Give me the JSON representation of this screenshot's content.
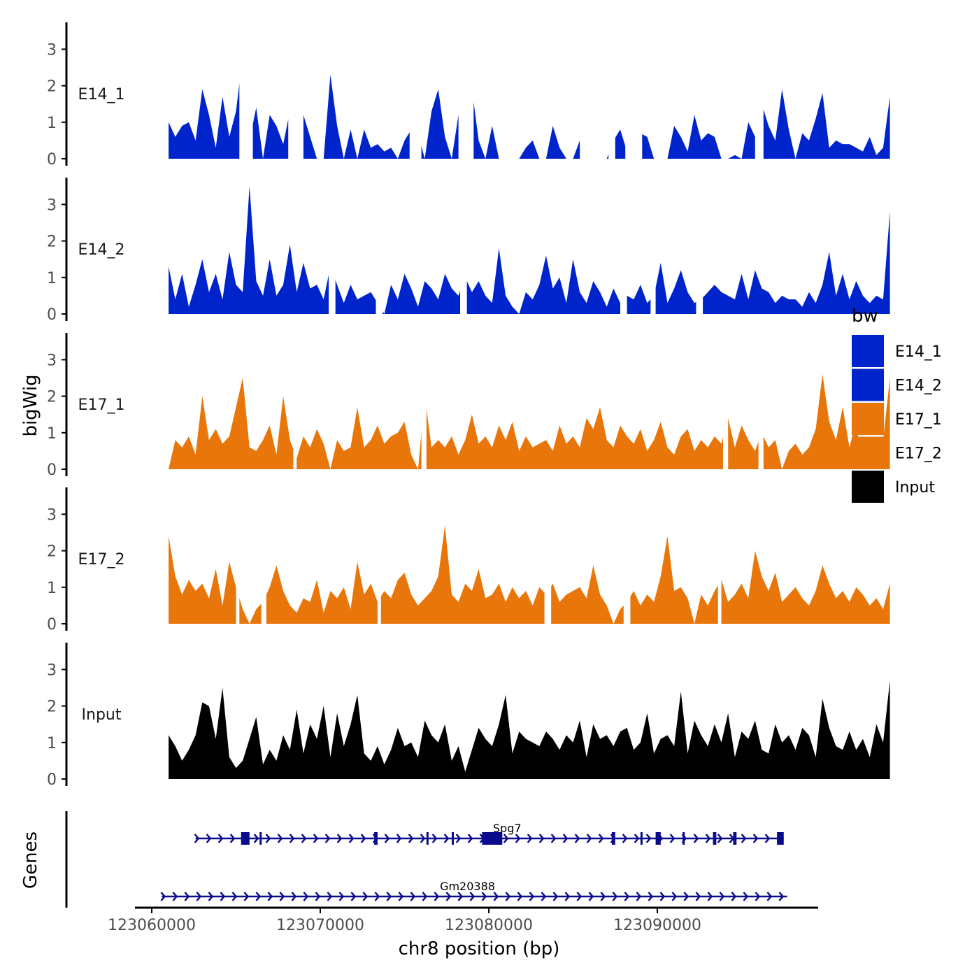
{
  "chart_data": {
    "type": "area",
    "title": "",
    "ylabel": "bigWig",
    "xlabel": "chr8 position (bp)",
    "region": {
      "chrom": "chr8",
      "start": 123061000,
      "end": 123097700
    },
    "xlim": [
      123058500,
      123098500
    ],
    "x_ticks": [
      123060000,
      123070000,
      123080000,
      123090000
    ],
    "x_tick_labels": [
      "123060000",
      "123070000",
      "123080000",
      "123090000"
    ],
    "ylim": [
      0,
      3.8
    ],
    "y_ticks": [
      0,
      1,
      2,
      3
    ],
    "y_tick_labels": [
      "0",
      "1",
      "2",
      "3"
    ],
    "bin_size_bp": 400,
    "legend": {
      "title": "bw",
      "position": "right",
      "entries": [
        {
          "label": "E14_1",
          "color": "#0024CC"
        },
        {
          "label": "E14_2",
          "color": "#0024CC"
        },
        {
          "label": "E17_1",
          "color": "#E8760A"
        },
        {
          "label": "E17_2",
          "color": "#E8760A"
        },
        {
          "label": "Input",
          "color": "#000000"
        }
      ]
    },
    "series": [
      {
        "name": "E14_1",
        "color": "#0024CC",
        "values": [
          1.0,
          0.6,
          0.9,
          1.0,
          0.5,
          1.9,
          1.2,
          0.3,
          1.7,
          0.6,
          1.3,
          2.8,
          0.5,
          1.4,
          0.0,
          1.2,
          0.9,
          0.4,
          1.3,
          1.0,
          1.2,
          0.6,
          0.0,
          0.0,
          2.3,
          0.9,
          0.0,
          0.8,
          0.0,
          0.8,
          0.3,
          0.4,
          0.2,
          0.3,
          0.0,
          0.5,
          0.8,
          0.7,
          0.0,
          1.3,
          1.9,
          0.6,
          0.0,
          1.2,
          0.5,
          1.9,
          0.5,
          0.0,
          0.9,
          0.0,
          0.0,
          0.7,
          0.0,
          0.3,
          0.5,
          0.0,
          0.0,
          0.9,
          0.3,
          0.0,
          0.0,
          0.5,
          0.0,
          0.4,
          0.0,
          0.0,
          0.5,
          0.8,
          0.2,
          0.9,
          0.7,
          0.6,
          0.0,
          0.0,
          0.0,
          0.9,
          0.6,
          0.2,
          1.2,
          0.5,
          0.7,
          0.6,
          0.0,
          0.0,
          0.1,
          0.0,
          1.0,
          0.6,
          1.5,
          0.9,
          0.5,
          1.9,
          0.8,
          0.0,
          0.7,
          0.5,
          1.1,
          1.8,
          0.3,
          0.5,
          0.4,
          0.4,
          0.3,
          0.2,
          0.6,
          0.1,
          0.3,
          1.7
        ],
        "gaps": [
          [
            123065200,
            123066000
          ],
          [
            123068100,
            123069000
          ],
          [
            123075300,
            123076000
          ],
          [
            123078200,
            123079100
          ],
          [
            123080800,
            123081800
          ],
          [
            123085400,
            123086600
          ],
          [
            123087100,
            123087500
          ],
          [
            123088100,
            123089100
          ],
          [
            123090200,
            123090600
          ],
          [
            123095800,
            123096300
          ]
        ]
      },
      {
        "name": "E14_2",
        "color": "#0024CC",
        "values": [
          1.3,
          0.4,
          1.1,
          0.2,
          0.8,
          1.5,
          0.6,
          1.1,
          0.4,
          1.7,
          0.8,
          0.6,
          3.5,
          0.9,
          0.5,
          1.5,
          0.5,
          0.8,
          1.9,
          0.6,
          1.4,
          0.7,
          0.8,
          0.4,
          1.3,
          0.8,
          0.3,
          0.8,
          0.4,
          0.5,
          0.6,
          0.3,
          0.0,
          0.8,
          0.4,
          1.1,
          0.7,
          0.2,
          0.9,
          0.7,
          0.4,
          1.1,
          0.7,
          0.5,
          1.0,
          0.6,
          0.9,
          0.5,
          0.3,
          1.8,
          0.5,
          0.2,
          0.0,
          0.6,
          0.4,
          0.8,
          1.6,
          0.7,
          1.0,
          0.3,
          1.5,
          0.6,
          0.3,
          0.9,
          0.6,
          0.2,
          0.7,
          0.3,
          0.5,
          0.4,
          0.8,
          0.3,
          0.5,
          1.4,
          0.3,
          0.7,
          1.2,
          0.6,
          0.3,
          0.4,
          0.6,
          0.8,
          0.6,
          0.5,
          0.4,
          1.1,
          0.4,
          1.2,
          0.7,
          0.6,
          0.3,
          0.5,
          0.4,
          0.4,
          0.2,
          0.6,
          0.3,
          0.8,
          1.7,
          0.5,
          1.1,
          0.4,
          0.9,
          0.5,
          0.3,
          0.5,
          0.4,
          2.8
        ],
        "gaps": [
          [
            123070500,
            123070900
          ],
          [
            123073300,
            123073700
          ],
          [
            123078300,
            123078700
          ],
          [
            123087800,
            123088200
          ],
          [
            123089600,
            123089900
          ],
          [
            123092300,
            123092700
          ]
        ]
      },
      {
        "name": "E17_1",
        "color": "#E8760A",
        "values": [
          0.0,
          0.8,
          0.6,
          0.9,
          0.4,
          2.0,
          0.8,
          1.1,
          0.7,
          0.9,
          1.7,
          2.5,
          0.6,
          0.5,
          0.8,
          1.2,
          0.4,
          2.0,
          0.8,
          0.3,
          0.9,
          0.6,
          1.1,
          0.7,
          0.0,
          0.8,
          0.5,
          0.6,
          1.7,
          0.6,
          0.8,
          1.2,
          0.7,
          0.9,
          1.0,
          1.3,
          0.4,
          0.0,
          2.0,
          0.6,
          0.8,
          0.6,
          0.9,
          0.4,
          0.8,
          1.5,
          0.7,
          0.9,
          0.6,
          1.2,
          0.8,
          1.3,
          0.5,
          0.9,
          0.6,
          0.7,
          0.8,
          0.5,
          1.2,
          0.7,
          0.9,
          0.6,
          1.4,
          1.1,
          1.7,
          0.8,
          0.6,
          1.2,
          0.9,
          0.7,
          1.1,
          0.5,
          0.8,
          1.3,
          0.6,
          0.4,
          0.9,
          1.1,
          0.5,
          0.8,
          0.6,
          0.9,
          0.7,
          1.4,
          0.6,
          1.2,
          0.8,
          0.5,
          1.0,
          0.6,
          0.8,
          0.0,
          0.5,
          0.7,
          0.4,
          0.6,
          1.1,
          2.6,
          1.3,
          0.8,
          1.7,
          0.6,
          1.3,
          0.0,
          0.4,
          0.5,
          0.8,
          2.5
        ],
        "gaps": [
          [
            123068400,
            123068600
          ],
          [
            123076000,
            123076300
          ],
          [
            123093900,
            123094200
          ],
          [
            123096000,
            123096300
          ]
        ]
      },
      {
        "name": "E17_2",
        "color": "#E8760A",
        "values": [
          2.4,
          1.3,
          0.8,
          1.2,
          0.9,
          1.1,
          0.7,
          1.5,
          0.5,
          1.7,
          1.0,
          0.4,
          0.0,
          0.4,
          0.6,
          1.0,
          1.6,
          0.9,
          0.5,
          0.3,
          0.7,
          0.6,
          1.2,
          0.3,
          0.9,
          0.7,
          1.0,
          0.4,
          1.7,
          0.8,
          1.1,
          0.6,
          0.9,
          0.7,
          1.2,
          1.4,
          0.8,
          0.5,
          0.7,
          0.9,
          1.3,
          2.7,
          0.8,
          0.6,
          1.1,
          0.9,
          1.5,
          0.7,
          0.8,
          1.1,
          0.6,
          1.0,
          0.7,
          0.9,
          0.5,
          1.0,
          0.8,
          1.1,
          0.6,
          0.8,
          0.9,
          1.0,
          0.7,
          1.6,
          0.8,
          0.5,
          0.0,
          0.4,
          0.6,
          0.9,
          0.5,
          0.8,
          0.6,
          1.3,
          2.4,
          0.9,
          1.0,
          0.7,
          0.0,
          0.8,
          0.5,
          0.9,
          1.2,
          0.6,
          0.8,
          1.1,
          0.7,
          2.0,
          1.3,
          0.9,
          1.4,
          0.6,
          0.8,
          1.0,
          0.7,
          0.5,
          0.9,
          1.6,
          1.1,
          0.7,
          0.9,
          0.6,
          1.0,
          0.8,
          0.5,
          0.7,
          0.4,
          1.1
        ],
        "gaps": [
          [
            123065000,
            123065200
          ],
          [
            123066500,
            123066800
          ],
          [
            123073400,
            123073600
          ],
          [
            123083300,
            123083700
          ],
          [
            123088000,
            123088400
          ],
          [
            123093600,
            123093800
          ]
        ]
      },
      {
        "name": "Input",
        "color": "#000000",
        "values": [
          1.2,
          0.9,
          0.5,
          0.8,
          1.2,
          2.1,
          2.0,
          1.1,
          2.5,
          0.6,
          0.3,
          0.5,
          1.1,
          1.7,
          0.4,
          0.8,
          0.5,
          1.2,
          0.8,
          1.9,
          0.7,
          1.5,
          1.1,
          2.0,
          0.6,
          1.8,
          0.9,
          1.5,
          2.3,
          0.7,
          0.5,
          0.9,
          0.4,
          0.8,
          1.4,
          0.9,
          1.0,
          0.6,
          1.6,
          1.2,
          1.0,
          1.5,
          0.5,
          0.9,
          0.2,
          0.8,
          1.4,
          1.1,
          0.9,
          1.5,
          2.3,
          0.7,
          1.3,
          1.1,
          1.0,
          0.9,
          1.3,
          1.1,
          0.8,
          1.2,
          1.0,
          1.6,
          0.6,
          1.5,
          1.1,
          1.2,
          0.9,
          1.3,
          1.4,
          0.8,
          1.0,
          1.8,
          0.7,
          1.1,
          1.2,
          0.9,
          2.4,
          0.7,
          1.6,
          1.2,
          0.9,
          1.5,
          1.0,
          1.8,
          0.6,
          1.3,
          1.1,
          1.6,
          0.8,
          0.7,
          1.5,
          1.0,
          1.2,
          0.8,
          1.4,
          1.2,
          0.6,
          2.2,
          1.4,
          0.9,
          0.8,
          1.3,
          0.8,
          1.1,
          0.6,
          1.5,
          1.0,
          2.7
        ],
        "gaps": []
      }
    ],
    "genes": [
      {
        "name": "Spg7",
        "start": 123062600,
        "end": 123097500,
        "strand": "+",
        "exons": [
          [
            123065300,
            123065800
          ],
          [
            123066400,
            123066500
          ],
          [
            123073200,
            123073400
          ],
          [
            123076300,
            123076400
          ],
          [
            123077800,
            123077900
          ],
          [
            123079600,
            123080800
          ],
          [
            123087300,
            123087500
          ],
          [
            123089000,
            123089100
          ],
          [
            123089900,
            123090200
          ],
          [
            123091500,
            123091600
          ],
          [
            123093300,
            123093500
          ],
          [
            123094500,
            123094700
          ],
          [
            123097100,
            123097500
          ]
        ]
      },
      {
        "name": "Gm20388",
        "start": 123060600,
        "end": 123097700,
        "strand": "+",
        "exons": []
      }
    ]
  },
  "panels": {
    "track_labels": [
      "E14_1",
      "E14_2",
      "E17_1",
      "E17_2",
      "Input"
    ],
    "genes_label": "Genes"
  }
}
